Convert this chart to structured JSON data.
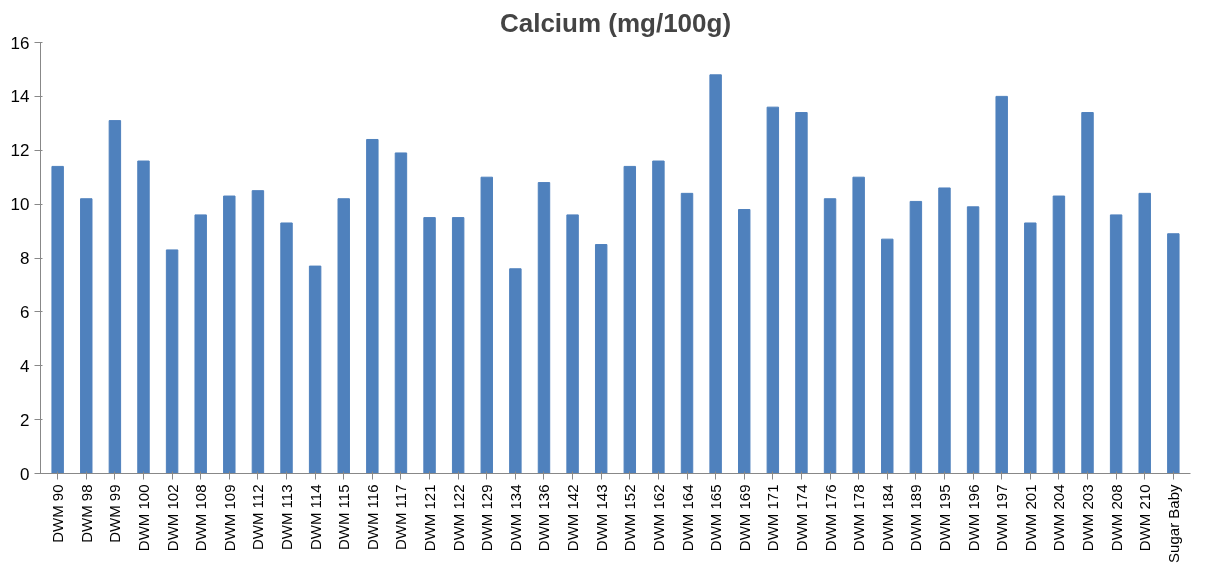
{
  "chart_data": {
    "type": "bar",
    "title": "Calcium (mg/100g)",
    "categories": [
      "DWM 90",
      "DWM 98",
      "DWM 99",
      "DWM 100",
      "DWM 102",
      "DWM 108",
      "DWM 109",
      "DWM 112",
      "DWM 113",
      "DWM 114",
      "DWM 115",
      "DWM 116",
      "DWM 117",
      "DWM 121",
      "DWM 122",
      "DWM 129",
      "DWM 134",
      "DWM 136",
      "DWM 142",
      "DWM 143",
      "DWM 152",
      "DWM 162",
      "DWM 164",
      "DWM 165",
      "DWM 169",
      "DWM 171",
      "DWM 174",
      "DWM 176",
      "DWM 178",
      "DWM 184",
      "DWM 189",
      "DWM 195",
      "DWM 196",
      "DWM 197",
      "DWM 201",
      "DWM 204",
      "DWM 203",
      "DWM 208",
      "DWM 210",
      "Sugar Baby"
    ],
    "values": [
      11.4,
      10.2,
      13.1,
      11.6,
      8.3,
      9.6,
      10.3,
      10.5,
      9.3,
      7.7,
      10.2,
      12.4,
      11.9,
      9.5,
      9.5,
      11.0,
      7.6,
      10.8,
      9.6,
      8.5,
      11.4,
      11.6,
      10.4,
      14.8,
      9.8,
      13.6,
      13.4,
      10.2,
      11.0,
      8.7,
      10.1,
      10.6,
      9.9,
      14.0,
      9.3,
      10.3,
      13.4,
      9.6,
      10.4,
      8.9
    ],
    "color": "#4f81bd",
    "ylim": [
      0,
      16
    ],
    "yticks": [
      0,
      2,
      4,
      6,
      8,
      10,
      12,
      14,
      16
    ],
    "grid": false
  }
}
